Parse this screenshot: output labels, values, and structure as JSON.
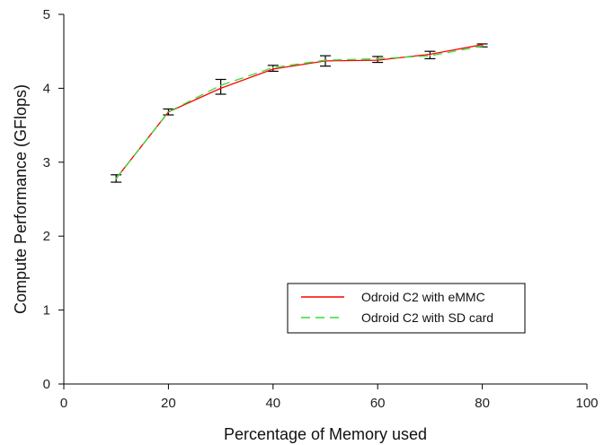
{
  "chart_data": {
    "type": "line",
    "title": "",
    "xlabel": "Percentage of Memory used",
    "ylabel": "Compute Performance (GFlops)",
    "xlim": [
      0,
      100
    ],
    "ylim": [
      0,
      5
    ],
    "x_ticks": [
      0,
      20,
      40,
      60,
      80,
      100
    ],
    "y_ticks": [
      0,
      1,
      2,
      3,
      4,
      5
    ],
    "grid": false,
    "legend_position": "bottom-right",
    "x": [
      10,
      20,
      30,
      40,
      50,
      60,
      70,
      80
    ],
    "series": [
      {
        "name": "Odroid C2 with eMMC",
        "color": "#ff0000",
        "dash": "solid",
        "values": [
          2.78,
          3.68,
          4.0,
          4.26,
          4.37,
          4.38,
          4.46,
          4.59
        ]
      },
      {
        "name": "Odroid C2 with SD card",
        "color": "#33dd33",
        "dash": "dashed",
        "values": [
          2.78,
          3.68,
          4.04,
          4.28,
          4.38,
          4.4,
          4.44,
          4.57
        ]
      }
    ],
    "error_bars": {
      "x": [
        10,
        20,
        30,
        40,
        50,
        60,
        70,
        80
      ],
      "center": [
        2.78,
        3.68,
        4.02,
        4.27,
        4.37,
        4.39,
        4.45,
        4.58
      ],
      "half_width": [
        0.05,
        0.04,
        0.1,
        0.04,
        0.07,
        0.04,
        0.05,
        0.02
      ]
    }
  }
}
